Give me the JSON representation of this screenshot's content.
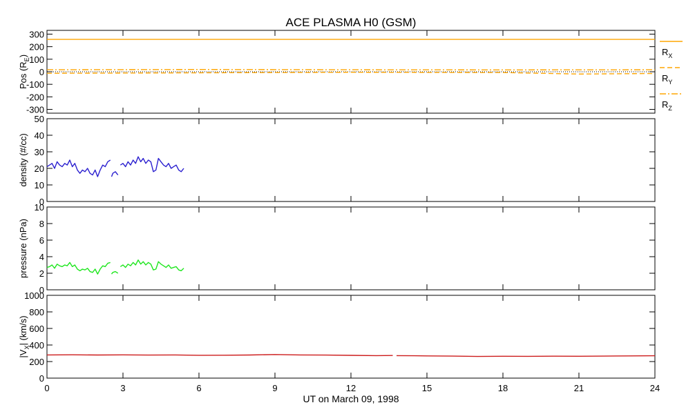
{
  "chart_data": {
    "title": "ACE PLASMA H0 (GSM)",
    "xlabel": "UT on March 09, 1998",
    "x_ticks": [
      "0",
      "3",
      "6",
      "9",
      "12",
      "15",
      "18",
      "21",
      "24"
    ],
    "xlim": [
      0,
      24
    ],
    "panels": [
      {
        "id": "pos",
        "type": "line",
        "ylabel_main": "Pos (R",
        "ylabel_sub": "E",
        "ylabel_end": ")",
        "ylim": [
          -330,
          330
        ],
        "y_ticks": [
          300,
          200,
          100,
          0,
          -100,
          -200,
          -300
        ],
        "zero_line": true,
        "series": [
          {
            "name_main": "R",
            "name_sub": "X",
            "color": "#ffa500",
            "dash": "none",
            "x": [
              0,
              24
            ],
            "y": [
              258,
              258
            ]
          },
          {
            "name_main": "R",
            "name_sub": "Y",
            "color": "#ffa500",
            "dash": "7,4",
            "x": [
              0,
              6,
              12,
              18,
              21,
              24
            ],
            "y": [
              -12,
              -8,
              -4,
              -6,
              -18,
              -14
            ]
          },
          {
            "name_main": "R",
            "name_sub": "Z",
            "color": "#ffa500",
            "dash": "9,3,2,3",
            "x": [
              0,
              6,
              12,
              18,
              24
            ],
            "y": [
              16,
              18,
              16,
              15,
              16
            ]
          }
        ]
      },
      {
        "id": "density",
        "type": "line",
        "ylabel": "density (#/cc)",
        "ylim": [
          0,
          50
        ],
        "y_ticks": [
          0,
          10,
          20,
          30,
          40,
          50
        ],
        "series": [
          {
            "color": "#2a1fcf",
            "segments": [
              {
                "x": [
                  0.0,
                  0.1,
                  0.2,
                  0.3,
                  0.4,
                  0.5,
                  0.6,
                  0.7,
                  0.8,
                  0.9,
                  1.0,
                  1.1,
                  1.2,
                  1.3,
                  1.4,
                  1.5,
                  1.6,
                  1.7,
                  1.8,
                  1.9,
                  2.0,
                  2.1,
                  2.2,
                  2.3,
                  2.4,
                  2.5
                ],
                "y": [
                  21,
                  22,
                  23,
                  20,
                  24,
                  22,
                  21,
                  23,
                  22,
                  25,
                  21,
                  23,
                  19,
                  17,
                  19,
                  18,
                  20,
                  17,
                  16,
                  19,
                  15,
                  19,
                  22,
                  21,
                  24,
                  25
                ]
              },
              {
                "x": [
                  2.55,
                  2.6,
                  2.7,
                  2.8
                ],
                "y": [
                  15,
                  17,
                  18,
                  16
                ]
              },
              {
                "x": [
                  2.9,
                  3.0,
                  3.1,
                  3.2,
                  3.3,
                  3.4,
                  3.5,
                  3.6,
                  3.7,
                  3.8,
                  3.9,
                  4.0,
                  4.1,
                  4.2,
                  4.3,
                  4.4,
                  4.5,
                  4.6,
                  4.7,
                  4.8,
                  4.9,
                  5.0,
                  5.1,
                  5.2,
                  5.3,
                  5.4
                ],
                "y": [
                  22,
                  23,
                  21,
                  24,
                  22,
                  25,
                  23,
                  27,
                  24,
                  26,
                  23,
                  25,
                  24,
                  18,
                  19,
                  26,
                  24,
                  22,
                  21,
                  23,
                  20,
                  21,
                  22,
                  19,
                  18,
                  20
                ]
              }
            ]
          }
        ]
      },
      {
        "id": "pressure",
        "type": "line",
        "ylabel": "pressure (nPa)",
        "ylim": [
          0,
          10
        ],
        "y_ticks": [
          0,
          2,
          4,
          6,
          8,
          10
        ],
        "series": [
          {
            "color": "#1ee61e",
            "segments": [
              {
                "x": [
                  0.0,
                  0.1,
                  0.2,
                  0.3,
                  0.4,
                  0.5,
                  0.6,
                  0.7,
                  0.8,
                  0.9,
                  1.0,
                  1.1,
                  1.2,
                  1.3,
                  1.4,
                  1.5,
                  1.6,
                  1.7,
                  1.8,
                  1.9,
                  2.0,
                  2.1,
                  2.2,
                  2.3,
                  2.4,
                  2.5
                ],
                "y": [
                  2.7,
                  2.8,
                  3.0,
                  2.6,
                  3.1,
                  2.9,
                  2.8,
                  3.0,
                  2.9,
                  3.3,
                  2.8,
                  3.0,
                  2.5,
                  2.3,
                  2.5,
                  2.4,
                  2.6,
                  2.2,
                  2.1,
                  2.5,
                  1.9,
                  2.5,
                  2.9,
                  2.8,
                  3.2,
                  3.3
                ]
              },
              {
                "x": [
                  2.55,
                  2.6,
                  2.7,
                  2.8
                ],
                "y": [
                  1.9,
                  2.1,
                  2.2,
                  2.0
                ]
              },
              {
                "x": [
                  2.9,
                  3.0,
                  3.1,
                  3.2,
                  3.3,
                  3.4,
                  3.5,
                  3.6,
                  3.7,
                  3.8,
                  3.9,
                  4.0,
                  4.1,
                  4.2,
                  4.3,
                  4.4,
                  4.5,
                  4.6,
                  4.7,
                  4.8,
                  4.9,
                  5.0,
                  5.1,
                  5.2,
                  5.3,
                  5.4
                ],
                "y": [
                  2.8,
                  3.0,
                  2.7,
                  3.1,
                  2.9,
                  3.3,
                  3.0,
                  3.6,
                  3.1,
                  3.4,
                  3.0,
                  3.3,
                  3.1,
                  2.4,
                  2.5,
                  3.4,
                  3.1,
                  2.9,
                  2.7,
                  3.0,
                  2.6,
                  2.7,
                  2.8,
                  2.4,
                  2.3,
                  2.6
                ]
              }
            ]
          }
        ]
      },
      {
        "id": "vx",
        "type": "line",
        "ylabel_main": "|V",
        "ylabel_sub": "X",
        "ylabel_end": "| (km/s)",
        "ylim": [
          0,
          1000
        ],
        "y_ticks": [
          0,
          200,
          400,
          600,
          800,
          1000
        ],
        "series": [
          {
            "color": "#cc1a1a",
            "segments": [
              {
                "x": [
                  0,
                  1,
                  2,
                  3,
                  4,
                  5,
                  6,
                  7,
                  8,
                  9,
                  10,
                  11,
                  12,
                  13,
                  13.65
                ],
                "y": [
                  280,
                  282,
                  279,
                  281,
                  278,
                  280,
                  276,
                  277,
                  279,
                  285,
                  280,
                  278,
                  275,
                  272,
                  273
                ]
              },
              {
                "x": [
                  13.8,
                  14.5,
                  15,
                  16,
                  17,
                  18,
                  19,
                  20,
                  21,
                  22,
                  23,
                  24
                ],
                "y": [
                  272,
                  270,
                  268,
                  266,
                  262,
                  264,
                  263,
                  265,
                  264,
                  266,
                  268,
                  270
                ]
              }
            ]
          }
        ]
      }
    ]
  }
}
